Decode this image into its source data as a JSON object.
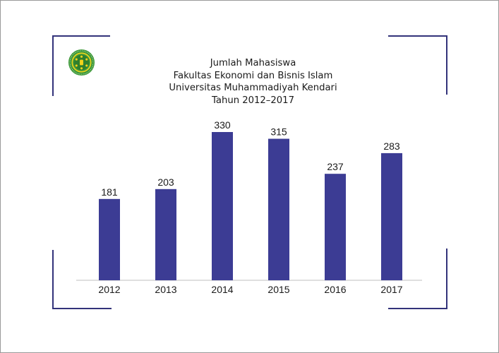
{
  "title_lines": [
    "Jumlah Mahasiswa",
    "Fakultas Ekonomi dan Bisnis Islam",
    "Universitas Muhammadiyah Kendari",
    "Tahun 2012–2017"
  ],
  "logo": {
    "icon": "university-seal-icon"
  },
  "colors": {
    "bar": "#3c3c94",
    "frame_corners": "#33337a",
    "axis": "#bfbfbf",
    "text": "#1a1a1a",
    "logo_green": "#3f9a3a",
    "logo_yellow": "#f2d31b"
  },
  "chart_data": {
    "type": "bar",
    "title": "Jumlah Mahasiswa Fakultas Ekonomi dan Bisnis Islam Universitas Muhammadiyah Kendari Tahun 2012–2017",
    "categories": [
      "2012",
      "2013",
      "2014",
      "2015",
      "2016",
      "2017"
    ],
    "values": [
      181,
      203,
      330,
      315,
      237,
      283
    ],
    "data_labels": true,
    "xlabel": "",
    "ylabel": "",
    "ylim": [
      0,
      330
    ],
    "grid": false,
    "legend": "none"
  }
}
